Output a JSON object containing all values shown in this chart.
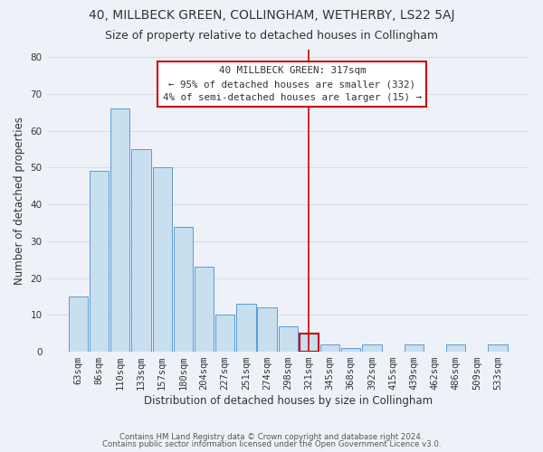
{
  "title": "40, MILLBECK GREEN, COLLINGHAM, WETHERBY, LS22 5AJ",
  "subtitle": "Size of property relative to detached houses in Collingham",
  "xlabel": "Distribution of detached houses by size in Collingham",
  "ylabel": "Number of detached properties",
  "footer_line1": "Contains HM Land Registry data © Crown copyright and database right 2024.",
  "footer_line2": "Contains public sector information licensed under the Open Government Licence v3.0.",
  "bar_labels": [
    "63sqm",
    "86sqm",
    "110sqm",
    "133sqm",
    "157sqm",
    "180sqm",
    "204sqm",
    "227sqm",
    "251sqm",
    "274sqm",
    "298sqm",
    "321sqm",
    "345sqm",
    "368sqm",
    "392sqm",
    "415sqm",
    "439sqm",
    "462sqm",
    "486sqm",
    "509sqm",
    "533sqm"
  ],
  "bar_values": [
    15,
    49,
    66,
    55,
    50,
    34,
    23,
    10,
    13,
    12,
    7,
    5,
    2,
    1,
    2,
    0,
    2,
    0,
    2,
    0,
    2
  ],
  "bar_color": "#c8dff0",
  "bar_edge_color": "#5b9bd5",
  "highlight_bar_index": 11,
  "vline_color": "#cc0000",
  "annotation_title": "40 MILLBECK GREEN: 317sqm",
  "annotation_line1": "← 95% of detached houses are smaller (332)",
  "annotation_line2": "4% of semi-detached houses are larger (15) →",
  "ylim": [
    0,
    82
  ],
  "yticks": [
    0,
    10,
    20,
    30,
    40,
    50,
    60,
    70,
    80
  ],
  "background_color": "#eef2f8",
  "plot_background_color": "#eef2f8",
  "grid_color": "#d8dde8",
  "title_fontsize": 10,
  "subtitle_fontsize": 9,
  "axis_label_fontsize": 8.5,
  "tick_fontsize": 7.5,
  "annotation_box_edge_color": "#cc0000",
  "annotation_box_face_color": "#ffffff"
}
